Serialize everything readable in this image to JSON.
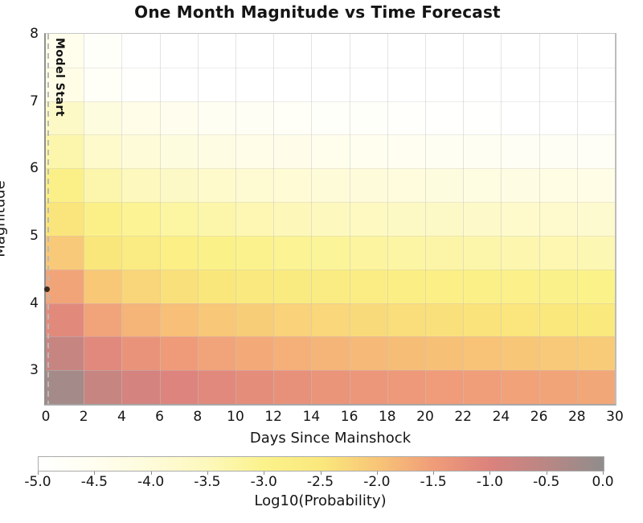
{
  "title": "One Month Magnitude vs Time Forecast",
  "axes": {
    "x_label": "Days Since Mainshock",
    "y_label": "Magnitude",
    "x_ticks": [
      0,
      2,
      4,
      6,
      8,
      10,
      12,
      14,
      16,
      18,
      20,
      22,
      24,
      26,
      28,
      30
    ],
    "y_ticks": [
      8,
      7,
      6,
      5,
      4,
      3
    ],
    "x_range": [
      0,
      30
    ],
    "y_range": [
      2.5,
      8.0
    ]
  },
  "annotations": {
    "model_start_label": "Model Start",
    "model_start_day": 0,
    "mainshock": {
      "day": 0,
      "magnitude": 4.2,
      "marker": "black-dot"
    }
  },
  "colorbar": {
    "label": "Log10(Probability)",
    "min": -5.0,
    "max": 0.0,
    "ticks": [
      -5.0,
      -4.5,
      -4.0,
      -3.5,
      -3.0,
      -2.5,
      -2.0,
      -1.5,
      -1.0,
      -0.5,
      0.0
    ],
    "stops": [
      {
        "value": -5.0,
        "color": "#ffffff"
      },
      {
        "value": -4.5,
        "color": "#fffeef"
      },
      {
        "value": -4.0,
        "color": "#fefbd9"
      },
      {
        "value": -3.5,
        "color": "#fdf8bb"
      },
      {
        "value": -3.0,
        "color": "#fbf28b"
      },
      {
        "value": -2.5,
        "color": "#fae87c"
      },
      {
        "value": -2.0,
        "color": "#f8c577"
      },
      {
        "value": -1.5,
        "color": "#f09c79"
      },
      {
        "value": -1.0,
        "color": "#db827d"
      },
      {
        "value": -0.5,
        "color": "#b98784"
      },
      {
        "value": 0.0,
        "color": "#8f8d8c"
      }
    ]
  },
  "chart_data": {
    "type": "heatmap",
    "title": "One Month Magnitude vs Time Forecast",
    "xlabel": "Days Since Mainshock",
    "ylabel": "Magnitude",
    "value_label": "Log10(Probability)",
    "x_bin_edges_days": [
      0,
      2,
      4,
      6,
      8,
      10,
      12,
      14,
      16,
      18,
      20,
      22,
      24,
      26,
      28,
      30
    ],
    "y_bin_edges_magnitude": [
      8.0,
      7.5,
      7.0,
      6.5,
      6.0,
      5.5,
      5.0,
      4.5,
      4.0,
      3.5,
      3.0,
      2.5
    ],
    "row_order": "top to bottom: magnitude 7.5-8.0 bin first, 2.5-3.0 bin last",
    "values_log10_probability": [
      [
        -4.4,
        -4.84,
        -5.0,
        -5.0,
        -5.0,
        -5.0,
        -5.0,
        -5.0,
        -5.0,
        -5.0,
        -5.0,
        -5.0,
        -5.0,
        -5.0,
        -5.0
      ],
      [
        -4.3,
        -4.74,
        -4.94,
        -5.0,
        -5.0,
        -5.0,
        -5.0,
        -5.0,
        -5.0,
        -5.0,
        -5.0,
        -5.0,
        -5.0,
        -5.0,
        -5.0
      ],
      [
        -3.7,
        -4.14,
        -4.34,
        -4.48,
        -4.58,
        -4.67,
        -4.74,
        -4.8,
        -4.85,
        -4.9,
        -4.94,
        -4.98,
        -5.0,
        -5.0,
        -5.0
      ],
      [
        -3.35,
        -3.79,
        -3.99,
        -4.13,
        -4.23,
        -4.32,
        -4.39,
        -4.45,
        -4.5,
        -4.55,
        -4.59,
        -4.63,
        -4.67,
        -4.7,
        -4.73
      ],
      [
        -2.9,
        -3.34,
        -3.54,
        -3.68,
        -3.78,
        -3.87,
        -3.94,
        -4.0,
        -4.05,
        -4.1,
        -4.14,
        -4.18,
        -4.22,
        -4.25,
        -4.28
      ],
      [
        -2.45,
        -2.89,
        -3.09,
        -3.23,
        -3.33,
        -3.42,
        -3.49,
        -3.55,
        -3.6,
        -3.65,
        -3.69,
        -3.73,
        -3.77,
        -3.8,
        -3.83
      ],
      [
        -2.05,
        -2.49,
        -2.69,
        -2.83,
        -2.93,
        -3.02,
        -3.09,
        -3.15,
        -3.2,
        -3.25,
        -3.29,
        -3.33,
        -3.37,
        -3.4,
        -3.43
      ],
      [
        -1.6,
        -2.04,
        -2.24,
        -2.38,
        -2.48,
        -2.57,
        -2.64,
        -2.7,
        -2.75,
        -2.8,
        -2.84,
        -2.88,
        -2.92,
        -2.95,
        -2.98
      ],
      [
        -1.15,
        -1.59,
        -1.79,
        -1.93,
        -2.03,
        -2.12,
        -2.19,
        -2.25,
        -2.3,
        -2.35,
        -2.39,
        -2.43,
        -2.47,
        -2.5,
        -2.53
      ],
      [
        -0.7,
        -1.14,
        -1.34,
        -1.48,
        -1.58,
        -1.67,
        -1.74,
        -1.8,
        -1.85,
        -1.9,
        -1.94,
        -1.98,
        -2.02,
        -2.05,
        -2.08
      ],
      [
        -0.25,
        -0.69,
        -0.89,
        -1.03,
        -1.13,
        -1.22,
        -1.29,
        -1.35,
        -1.4,
        -1.45,
        -1.49,
        -1.53,
        -1.57,
        -1.6,
        -1.63
      ]
    ]
  }
}
